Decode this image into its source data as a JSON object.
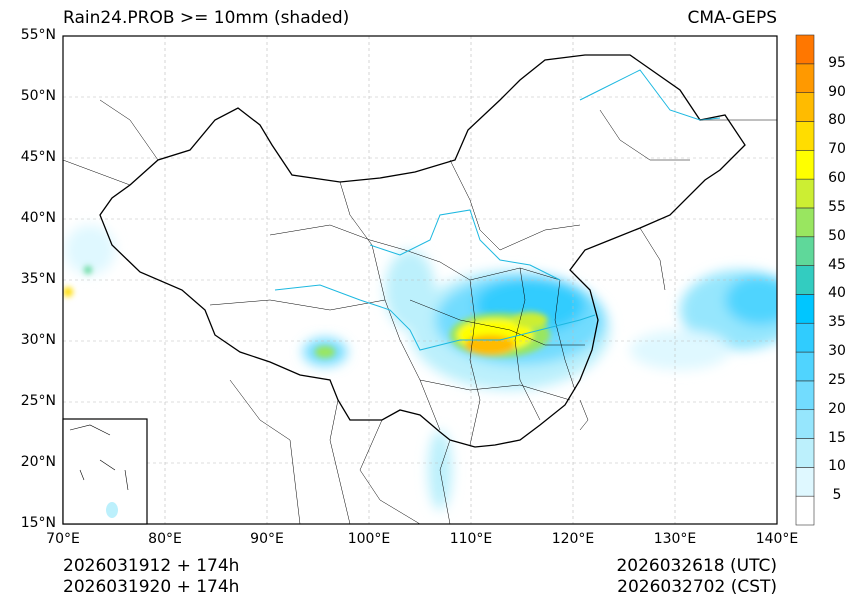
{
  "title_left": "Rain24.PROB >= 10mm (shaded)",
  "title_right": "CMA-GEPS",
  "lat_ticks": [
    "55°N",
    "50°N",
    "45°N",
    "40°N",
    "35°N",
    "30°N",
    "25°N",
    "20°N",
    "15°N"
  ],
  "lon_ticks": [
    "70°E",
    "80°E",
    "90°E",
    "100°E",
    "110°E",
    "120°E",
    "130°E",
    "140°E"
  ],
  "colorbar": {
    "labels": [
      "5",
      "10",
      "15",
      "20",
      "25",
      "30",
      "35",
      "40",
      "45",
      "50",
      "55",
      "60",
      "70",
      "80",
      "90",
      "95"
    ],
    "colors": [
      "#ffffff",
      "#dff8ff",
      "#bcf0fc",
      "#96e6fd",
      "#72dcfe",
      "#50d4fe",
      "#30ccfe",
      "#00c6ff",
      "#33ccc0",
      "#5fd89a",
      "#99e660",
      "#ccee33",
      "#ffff00",
      "#ffdd00",
      "#ffbb00",
      "#ff9900",
      "#ff7700"
    ]
  },
  "footer": {
    "init_utc": "2026031912 + 174h",
    "init_cst": "2026031920 + 174h",
    "valid_utc": "2026032618 (UTC)",
    "valid_cst": "2026032702 (CST)"
  }
}
